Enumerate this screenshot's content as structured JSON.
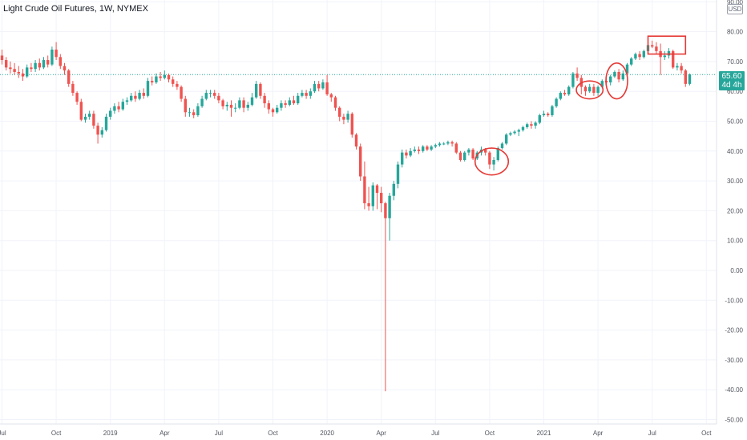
{
  "title": "Light Crude Oil Futures, 1W, NYMEX",
  "currency_badge": "USD",
  "last_price": {
    "value": "65.60",
    "countdown": "4d 4h",
    "tag_color": "#26a69a"
  },
  "colors": {
    "up": "#26a69a",
    "down": "#ef5350",
    "grid": "#f0f3fa",
    "annotation": "#e53935"
  },
  "chart_data": {
    "type": "candlestick",
    "title": "Light Crude Oil Futures, 1W, NYMEX",
    "ylim": [
      -52,
      92
    ],
    "y_ticks": [
      "90.00",
      "80.00",
      "70.00",
      "60.00",
      "50.00",
      "40.00",
      "30.00",
      "20.00",
      "10.00",
      "0.00",
      "-10.00",
      "-20.00",
      "-30.00",
      "-40.00",
      "-50.00"
    ],
    "x_tick_labels": [
      "Jul",
      "Oct",
      "2019",
      "Apr",
      "Jul",
      "Oct",
      "2020",
      "Apr",
      "Jul",
      "Oct",
      "2021",
      "Apr",
      "Jul",
      "Oct"
    ],
    "x_ticks_week": [
      0,
      13,
      26,
      39,
      52,
      65,
      78,
      91,
      104,
      117,
      130,
      143,
      156,
      169
    ],
    "grid": true,
    "candles": [
      [
        0,
        72.0,
        70.5,
        74.0,
        69.0
      ],
      [
        1,
        70.5,
        68.0,
        71.5,
        67.0
      ],
      [
        2,
        68.0,
        67.5,
        70.0,
        66.0
      ],
      [
        3,
        67.5,
        66.5,
        69.5,
        65.5
      ],
      [
        4,
        66.5,
        66.0,
        68.5,
        64.5
      ],
      [
        5,
        66.0,
        65.0,
        67.5,
        63.5
      ],
      [
        6,
        65.0,
        68.0,
        69.0,
        64.5
      ],
      [
        7,
        68.0,
        67.5,
        69.5,
        66.5
      ],
      [
        8,
        67.5,
        69.5,
        70.5,
        66.5
      ],
      [
        9,
        69.5,
        68.0,
        71.0,
        67.0
      ],
      [
        10,
        68.0,
        70.5,
        71.5,
        67.5
      ],
      [
        11,
        70.5,
        69.0,
        72.0,
        68.0
      ],
      [
        12,
        69.0,
        74.0,
        75.0,
        68.5
      ],
      [
        13,
        74.0,
        71.5,
        76.5,
        70.5
      ],
      [
        14,
        71.5,
        68.5,
        72.5,
        67.5
      ],
      [
        15,
        68.5,
        67.0,
        69.5,
        65.5
      ],
      [
        16,
        67.0,
        62.5,
        67.5,
        61.5
      ],
      [
        17,
        62.5,
        59.5,
        63.5,
        58.5
      ],
      [
        18,
        59.5,
        56.5,
        60.0,
        55.5
      ],
      [
        19,
        56.5,
        50.5,
        57.5,
        50.0
      ],
      [
        20,
        50.5,
        51.5,
        52.5,
        49.5
      ],
      [
        21,
        51.5,
        52.5,
        53.5,
        50.5
      ],
      [
        22,
        52.5,
        48.5,
        53.5,
        47.5
      ],
      [
        23,
        48.5,
        45.5,
        49.5,
        42.5
      ],
      [
        24,
        45.5,
        47.0,
        48.0,
        44.5
      ],
      [
        25,
        47.0,
        51.5,
        52.5,
        46.5
      ],
      [
        26,
        51.5,
        53.5,
        54.5,
        50.5
      ],
      [
        27,
        53.5,
        55.0,
        56.0,
        52.5
      ],
      [
        28,
        55.0,
        54.0,
        56.5,
        53.0
      ],
      [
        29,
        54.0,
        56.5,
        57.5,
        53.5
      ],
      [
        30,
        56.5,
        57.0,
        58.0,
        55.5
      ],
      [
        31,
        57.0,
        58.5,
        59.5,
        56.5
      ],
      [
        32,
        58.5,
        57.5,
        60.0,
        56.5
      ],
      [
        33,
        57.5,
        59.5,
        60.5,
        57.0
      ],
      [
        34,
        59.5,
        58.5,
        61.0,
        57.5
      ],
      [
        35,
        58.5,
        63.5,
        64.5,
        58.0
      ],
      [
        36,
        63.5,
        63.0,
        65.0,
        62.0
      ],
      [
        37,
        63.0,
        65.0,
        66.0,
        62.5
      ],
      [
        38,
        65.0,
        64.5,
        66.5,
        63.5
      ],
      [
        39,
        64.5,
        65.5,
        67.0,
        64.0
      ],
      [
        40,
        65.5,
        64.0,
        66.0,
        63.0
      ],
      [
        41,
        64.0,
        62.5,
        65.0,
        61.5
      ],
      [
        42,
        62.5,
        61.5,
        63.5,
        60.5
      ],
      [
        43,
        61.5,
        57.5,
        62.0,
        56.5
      ],
      [
        44,
        57.5,
        53.0,
        58.5,
        51.5
      ],
      [
        45,
        53.0,
        53.0,
        54.5,
        51.5
      ],
      [
        46,
        53.0,
        52.0,
        54.0,
        51.0
      ],
      [
        47,
        52.0,
        55.0,
        56.0,
        51.5
      ],
      [
        48,
        55.0,
        57.5,
        58.5,
        54.5
      ],
      [
        49,
        57.5,
        59.5,
        60.5,
        57.0
      ],
      [
        50,
        59.5,
        59.5,
        60.5,
        58.0
      ],
      [
        51,
        59.5,
        58.5,
        60.5,
        57.5
      ],
      [
        52,
        58.5,
        57.0,
        59.5,
        56.0
      ],
      [
        53,
        57.0,
        55.0,
        57.5,
        54.0
      ],
      [
        54,
        55.0,
        55.5,
        56.5,
        53.5
      ],
      [
        55,
        55.5,
        54.5,
        57.0,
        51.5
      ],
      [
        56,
        54.5,
        54.5,
        56.0,
        53.0
      ],
      [
        57,
        54.5,
        57.0,
        58.0,
        54.0
      ],
      [
        58,
        57.0,
        54.5,
        58.0,
        53.0
      ],
      [
        59,
        54.5,
        55.5,
        56.5,
        53.5
      ],
      [
        60,
        55.5,
        58.0,
        59.5,
        55.0
      ],
      [
        61,
        58.0,
        62.5,
        63.5,
        57.5
      ],
      [
        62,
        62.5,
        58.5,
        63.0,
        57.5
      ],
      [
        63,
        58.5,
        56.0,
        59.5,
        54.5
      ],
      [
        64,
        56.0,
        54.0,
        57.0,
        52.5
      ],
      [
        65,
        54.0,
        53.0,
        54.5,
        51.5
      ],
      [
        66,
        53.0,
        54.5,
        55.5,
        52.5
      ],
      [
        67,
        54.5,
        56.0,
        57.0,
        53.5
      ],
      [
        68,
        56.0,
        55.5,
        57.0,
        54.5
      ],
      [
        69,
        55.5,
        57.0,
        58.0,
        55.0
      ],
      [
        70,
        57.0,
        56.0,
        58.5,
        55.5
      ],
      [
        71,
        56.0,
        58.5,
        59.5,
        55.5
      ],
      [
        72,
        58.5,
        59.5,
        60.5,
        58.0
      ],
      [
        73,
        59.5,
        58.5,
        60.5,
        57.5
      ],
      [
        74,
        58.5,
        60.0,
        61.0,
        57.5
      ],
      [
        75,
        60.0,
        62.5,
        63.5,
        59.5
      ],
      [
        76,
        62.5,
        61.0,
        63.5,
        60.0
      ],
      [
        77,
        61.0,
        63.0,
        64.0,
        60.5
      ],
      [
        78,
        63.0,
        59.0,
        65.5,
        58.5
      ],
      [
        79,
        59.0,
        58.0,
        59.5,
        56.5
      ],
      [
        80,
        58.0,
        54.5,
        58.5,
        53.5
      ],
      [
        81,
        54.5,
        51.5,
        55.0,
        50.0
      ],
      [
        82,
        51.5,
        50.5,
        52.5,
        49.0
      ],
      [
        83,
        50.5,
        52.5,
        53.5,
        49.5
      ],
      [
        84,
        52.5,
        45.5,
        53.0,
        44.5
      ],
      [
        85,
        45.5,
        41.5,
        46.0,
        40.5
      ],
      [
        86,
        41.5,
        31.5,
        42.5,
        30.0
      ],
      [
        87,
        31.5,
        22.5,
        36.5,
        20.5
      ],
      [
        88,
        22.5,
        21.5,
        28.0,
        20.0
      ],
      [
        89,
        21.5,
        28.5,
        29.5,
        20.0
      ],
      [
        90,
        28.5,
        26.0,
        29.0,
        20.5
      ],
      [
        91,
        26.0,
        22.5,
        28.0,
        19.5
      ],
      [
        92,
        22.5,
        17.5,
        23.0,
        -40.5
      ],
      [
        93,
        17.5,
        25.0,
        26.0,
        10.0
      ],
      [
        94,
        25.0,
        29.0,
        30.0,
        23.5
      ],
      [
        95,
        29.0,
        35.5,
        36.5,
        27.5
      ],
      [
        96,
        35.5,
        39.5,
        40.5,
        34.5
      ],
      [
        97,
        39.5,
        38.5,
        40.5,
        37.5
      ],
      [
        98,
        38.5,
        40.0,
        41.0,
        38.0
      ],
      [
        99,
        40.0,
        40.5,
        41.5,
        39.5
      ],
      [
        100,
        40.5,
        40.0,
        41.5,
        39.0
      ],
      [
        101,
        40.0,
        41.5,
        42.0,
        39.5
      ],
      [
        102,
        41.5,
        40.5,
        42.0,
        40.0
      ],
      [
        103,
        40.5,
        41.5,
        42.0,
        40.0
      ],
      [
        104,
        41.5,
        42.0,
        42.5,
        41.0
      ],
      [
        105,
        42.0,
        42.5,
        43.0,
        41.5
      ],
      [
        106,
        42.5,
        42.5,
        43.0,
        42.0
      ],
      [
        107,
        42.5,
        43.0,
        43.5,
        42.0
      ],
      [
        108,
        43.0,
        42.5,
        43.5,
        41.5
      ],
      [
        109,
        42.5,
        39.5,
        43.0,
        39.0
      ],
      [
        110,
        39.5,
        37.0,
        40.0,
        36.5
      ],
      [
        111,
        37.0,
        39.5,
        40.0,
        36.5
      ],
      [
        112,
        39.5,
        40.5,
        41.0,
        38.5
      ],
      [
        113,
        40.5,
        37.5,
        41.0,
        37.0
      ],
      [
        114,
        37.5,
        39.5,
        40.0,
        37.0
      ],
      [
        115,
        39.5,
        40.5,
        41.5,
        38.5
      ],
      [
        116,
        40.5,
        39.5,
        41.0,
        38.5
      ],
      [
        117,
        39.5,
        35.5,
        40.0,
        34.0
      ],
      [
        118,
        35.5,
        37.0,
        38.0,
        33.5
      ],
      [
        119,
        37.0,
        41.0,
        41.5,
        36.5
      ],
      [
        120,
        41.0,
        42.5,
        43.0,
        40.5
      ],
      [
        121,
        42.5,
        45.5,
        46.0,
        42.0
      ],
      [
        122,
        45.5,
        46.0,
        46.5,
        45.0
      ],
      [
        123,
        46.0,
        46.5,
        47.0,
        45.5
      ],
      [
        124,
        46.5,
        47.0,
        47.5,
        45.0
      ],
      [
        125,
        47.0,
        48.0,
        48.5,
        46.5
      ],
      [
        126,
        48.0,
        49.0,
        49.5,
        47.5
      ],
      [
        127,
        49.0,
        48.5,
        50.0,
        47.5
      ],
      [
        128,
        48.5,
        49.5,
        50.0,
        47.5
      ],
      [
        129,
        49.5,
        52.0,
        52.5,
        49.0
      ],
      [
        130,
        52.0,
        52.5,
        53.5,
        51.5
      ],
      [
        131,
        52.5,
        52.0,
        53.0,
        51.5
      ],
      [
        132,
        52.0,
        55.0,
        55.5,
        51.5
      ],
      [
        133,
        55.0,
        57.5,
        58.0,
        54.5
      ],
      [
        134,
        57.5,
        59.5,
        60.0,
        57.0
      ],
      [
        135,
        59.5,
        59.0,
        60.5,
        58.5
      ],
      [
        136,
        59.0,
        61.5,
        62.0,
        58.5
      ],
      [
        137,
        61.5,
        66.0,
        66.5,
        61.0
      ],
      [
        138,
        66.0,
        64.5,
        68.0,
        63.5
      ],
      [
        139,
        64.5,
        61.5,
        65.5,
        59.0
      ],
      [
        140,
        61.5,
        60.0,
        62.0,
        58.5
      ],
      [
        141,
        60.0,
        61.5,
        62.5,
        59.5
      ],
      [
        142,
        61.5,
        59.5,
        62.5,
        58.5
      ],
      [
        143,
        59.5,
        61.5,
        62.0,
        58.5
      ],
      [
        144,
        61.5,
        63.5,
        64.0,
        61.0
      ],
      [
        145,
        63.5,
        63.0,
        65.5,
        62.5
      ],
      [
        146,
        63.0,
        65.0,
        65.5,
        62.0
      ],
      [
        147,
        65.0,
        66.5,
        67.0,
        64.5
      ],
      [
        148,
        66.5,
        64.0,
        67.5,
        63.0
      ],
      [
        149,
        64.0,
        66.0,
        67.0,
        63.5
      ],
      [
        150,
        66.0,
        69.0,
        69.5,
        65.5
      ],
      [
        151,
        69.0,
        71.0,
        71.5,
        68.5
      ],
      [
        152,
        71.0,
        72.5,
        73.0,
        70.5
      ],
      [
        153,
        72.5,
        71.5,
        73.5,
        70.5
      ],
      [
        154,
        71.5,
        73.5,
        74.0,
        71.0
      ],
      [
        155,
        73.5,
        75.5,
        76.0,
        73.0
      ],
      [
        156,
        75.5,
        75.0,
        77.0,
        74.5
      ],
      [
        157,
        75.0,
        73.5,
        76.5,
        72.5
      ],
      [
        158,
        73.5,
        71.5,
        76.0,
        65.5
      ],
      [
        159,
        71.5,
        72.0,
        73.5,
        70.5
      ],
      [
        160,
        72.0,
        73.5,
        74.5,
        71.0
      ],
      [
        161,
        73.5,
        68.0,
        74.0,
        67.5
      ],
      [
        162,
        68.0,
        68.5,
        69.5,
        67.0
      ],
      [
        163,
        68.5,
        67.0,
        69.5,
        66.0
      ],
      [
        164,
        67.0,
        62.5,
        67.5,
        61.5
      ],
      [
        165,
        62.5,
        65.6,
        66.0,
        62.0
      ]
    ],
    "price_line": 65.6,
    "annotations": [
      {
        "shape": "ellipse",
        "week": 117.5,
        "price": 36.5,
        "rx_weeks": 2.0,
        "ry_price": 4.5
      },
      {
        "shape": "ellipse",
        "week": 141.0,
        "price": 60.5,
        "rx_weeks": 1.6,
        "ry_price": 3.0
      },
      {
        "shape": "ellipse",
        "week": 147.5,
        "price": 63.5,
        "rx_weeks": 1.3,
        "ry_price": 6.0
      },
      {
        "shape": "rectangle",
        "week1": 155.0,
        "week2": 164.0,
        "price_high": 78.5,
        "price_low": 72.5
      }
    ]
  }
}
